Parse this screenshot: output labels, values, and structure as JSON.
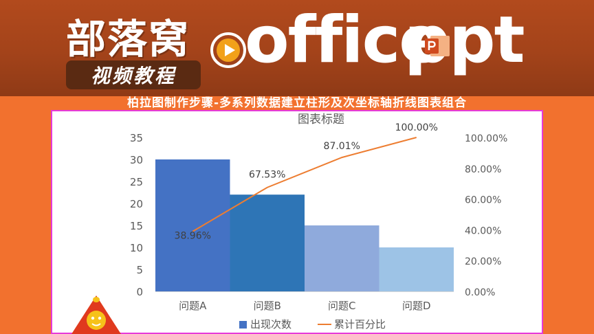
{
  "header": {
    "logo_text": "部落窝",
    "tag_text": "视频教程",
    "brand_office": "office",
    "brand_ppt": "ppt"
  },
  "subtitle": "柏拉图制作步骤-多系列数据建立柱形及次坐标轴折线图表组合",
  "colors": {
    "banner": "#a3431a",
    "page_bg": "#f2712e",
    "frame_border": "#e63ad9",
    "line": "#ed7d31"
  },
  "chart_data": {
    "type": "bar",
    "title": "图表标题",
    "categories": [
      "问题A",
      "问题B",
      "问题C",
      "问题D"
    ],
    "bar_colors": [
      "#4472c4",
      "#2e75b6",
      "#8faadc",
      "#9dc3e6"
    ],
    "series": [
      {
        "name": "出现次数",
        "type": "bar",
        "axis": "left",
        "values": [
          30,
          22,
          15,
          10
        ]
      },
      {
        "name": "累计百分比",
        "type": "line",
        "axis": "right",
        "values": [
          38.96,
          67.53,
          87.01,
          100.0
        ],
        "labels": [
          "38.96%",
          "67.53%",
          "87.01%",
          "100.00%"
        ]
      }
    ],
    "y_left": {
      "min": 0,
      "max": 35,
      "ticks": [
        "0",
        "5",
        "10",
        "15",
        "20",
        "25",
        "30",
        "35"
      ]
    },
    "y_right": {
      "min": 0,
      "max": 100,
      "ticks": [
        "0.00%",
        "20.00%",
        "40.00%",
        "60.00%",
        "80.00%",
        "100.00%"
      ]
    },
    "grid": false,
    "legend": "bottom"
  }
}
